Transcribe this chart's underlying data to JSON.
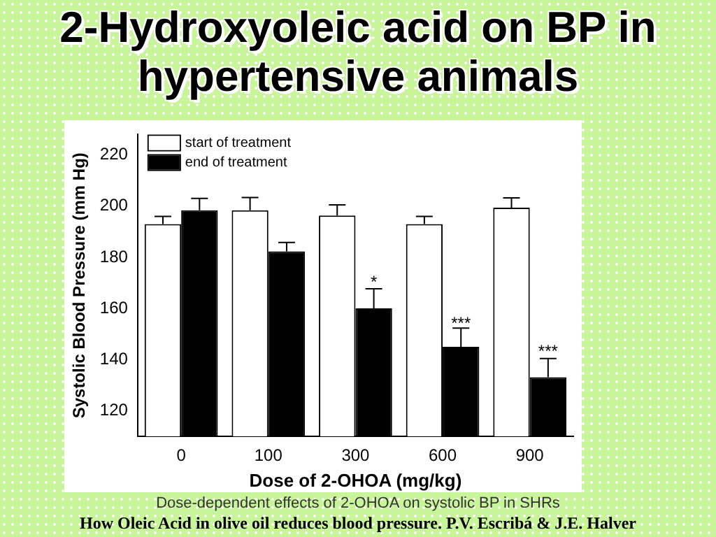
{
  "chart_data": {
    "type": "bar",
    "title": "2-Hydroxyoleic acid on BP in hypertensive animals",
    "xlabel": "Dose of 2-OHOA (mg/kg)",
    "ylabel": "Systolic Blood Pressure (mm Hg)",
    "categories": [
      "0",
      "100",
      "300",
      "600",
      "900"
    ],
    "series": [
      {
        "name": "start of treatment",
        "color": "#ffffff",
        "values": [
          193,
          198.4,
          196.3,
          193,
          199.4
        ],
        "errors": [
          [
            193,
            196
          ],
          [
            198.4,
            203.4
          ],
          [
            196.3,
            200.5
          ],
          [
            193,
            196
          ],
          [
            199.4,
            203.2
          ]
        ]
      },
      {
        "name": "end of treatment",
        "color": "#000000",
        "values": [
          198.4,
          182.3,
          160,
          145,
          133.1
        ],
        "errors": [
          [
            198.4,
            203
          ],
          [
            182.3,
            185.8
          ],
          [
            160,
            167.7
          ],
          [
            145,
            152.3
          ],
          [
            133.1,
            140.4
          ]
        ]
      }
    ],
    "ylim": [
      110,
      228
    ],
    "yticks": [
      120,
      140,
      160,
      180,
      200,
      220
    ],
    "grid": false,
    "legend": "top left",
    "annotations": [
      {
        "text": "*",
        "x": "300",
        "y": 170
      },
      {
        "text": "***",
        "x": "600",
        "y": 154
      },
      {
        "text": "***",
        "x": "900",
        "y": 143
      },
      "Dose-dependent effects of 2-OHOA on systolic BP in SHRs",
      "How Oleic Acid in olive oil reduces blood pressure. P.V. Escribá & J.E. Halver"
    ]
  }
}
